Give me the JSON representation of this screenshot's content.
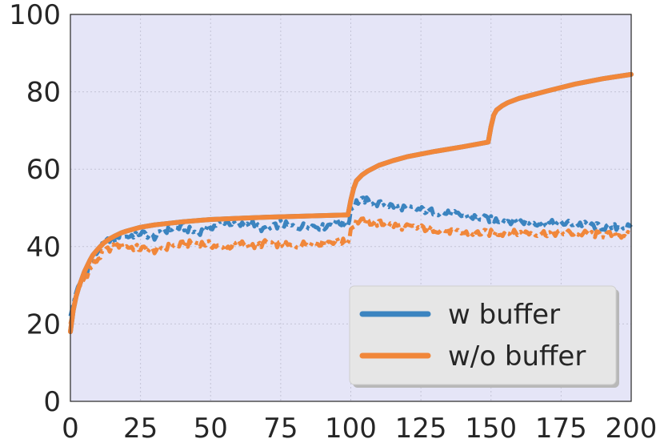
{
  "chart_data": {
    "type": "line",
    "title": "",
    "xlabel": "",
    "ylabel": "",
    "xlim": [
      0,
      200
    ],
    "ylim": [
      0,
      100
    ],
    "xticks": [
      0,
      25,
      50,
      75,
      100,
      125,
      150,
      175,
      200
    ],
    "yticks": [
      0,
      20,
      40,
      60,
      80,
      100
    ],
    "grid": true,
    "legend_position": "lower-right",
    "background_color": "#e5e5f7",
    "series": [
      {
        "name": "w buffer",
        "role": "solid-reference",
        "color": "#3b84c0",
        "style": "solid",
        "x": [
          0,
          1,
          2,
          3,
          4,
          5,
          6,
          7,
          8,
          10,
          12,
          14,
          16,
          18,
          20,
          25,
          30,
          35,
          40,
          50,
          60,
          70,
          80,
          90,
          99,
          100,
          101,
          102,
          104,
          106,
          110,
          115,
          120,
          130,
          140,
          149,
          150,
          151,
          152,
          154,
          156,
          160,
          170,
          180,
          190,
          200
        ],
        "y": [
          18,
          23.5,
          27,
          29.5,
          31.5,
          33.5,
          35,
          36.5,
          37.8,
          39.5,
          41,
          42,
          42.8,
          43.5,
          44,
          45,
          45.6,
          46,
          46.4,
          47,
          47.3,
          47.6,
          47.8,
          48,
          48.2,
          52,
          55,
          57,
          58.5,
          59.5,
          61,
          62.2,
          63.2,
          64.6,
          65.8,
          67,
          71,
          74,
          75.3,
          76.4,
          77.2,
          78.3,
          80.2,
          82,
          83.4,
          84.5
        ]
      },
      {
        "name": "",
        "role": "dashed",
        "color": "#3b84c0",
        "style": "dashdot",
        "x": [
          0,
          2,
          4,
          6,
          8,
          10,
          12,
          14,
          16,
          18,
          20,
          25,
          30,
          35,
          40,
          45,
          50,
          55,
          60,
          65,
          70,
          75,
          80,
          85,
          90,
          95,
          99,
          100,
          102,
          105,
          110,
          120,
          130,
          140,
          150,
          160,
          170,
          180,
          190,
          200
        ],
        "y": [
          22,
          28,
          31,
          34,
          37,
          39,
          40.5,
          42,
          41.5,
          43.5,
          42.5,
          43.5,
          42.5,
          44.5,
          45,
          43.5,
          45,
          46.5,
          45.5,
          46,
          44,
          46,
          45,
          45.5,
          45,
          46.5,
          45.5,
          49.5,
          51.5,
          52,
          51,
          50,
          49,
          48,
          47,
          46.5,
          46,
          46,
          45,
          45
        ]
      },
      {
        "name": "w/o buffer",
        "role": "solid",
        "color": "#f1873a",
        "style": "solid",
        "x": [
          0,
          1,
          2,
          3,
          4,
          5,
          6,
          7,
          8,
          10,
          12,
          14,
          16,
          18,
          20,
          25,
          30,
          35,
          40,
          50,
          60,
          70,
          80,
          90,
          99,
          100,
          101,
          102,
          104,
          106,
          110,
          115,
          120,
          130,
          140,
          149,
          150,
          151,
          152,
          154,
          156,
          160,
          170,
          180,
          190,
          200
        ],
        "y": [
          18,
          23.5,
          27,
          29.5,
          31.5,
          33.5,
          35,
          36.5,
          37.8,
          39.5,
          41,
          42,
          42.8,
          43.5,
          44,
          45,
          45.6,
          46,
          46.4,
          47,
          47.3,
          47.6,
          47.8,
          48,
          48.2,
          52,
          55,
          57,
          58.5,
          59.5,
          61,
          62.2,
          63.2,
          64.6,
          65.8,
          67,
          71,
          74,
          75.3,
          76.4,
          77.2,
          78.3,
          80.2,
          82,
          83.4,
          84.5
        ]
      },
      {
        "name": "",
        "role": "dashed",
        "color": "#f1873a",
        "style": "dashdot",
        "x": [
          0,
          2,
          4,
          6,
          8,
          10,
          12,
          14,
          16,
          18,
          20,
          25,
          30,
          35,
          40,
          45,
          50,
          55,
          60,
          65,
          70,
          75,
          80,
          85,
          90,
          95,
          99,
          100,
          102,
          105,
          110,
          120,
          130,
          140,
          150,
          160,
          170,
          180,
          190,
          200
        ],
        "y": [
          20,
          27,
          30.5,
          33,
          35,
          37,
          38.5,
          39.5,
          40,
          40.5,
          40,
          39.5,
          39,
          40,
          40.5,
          41,
          40.5,
          39.5,
          41,
          40,
          41,
          40.5,
          40,
          41,
          41,
          41.5,
          41,
          44.5,
          46.5,
          46.5,
          46,
          45,
          44.5,
          43.5,
          43.5,
          43.5,
          43.5,
          43.5,
          43,
          43
        ]
      }
    ]
  }
}
